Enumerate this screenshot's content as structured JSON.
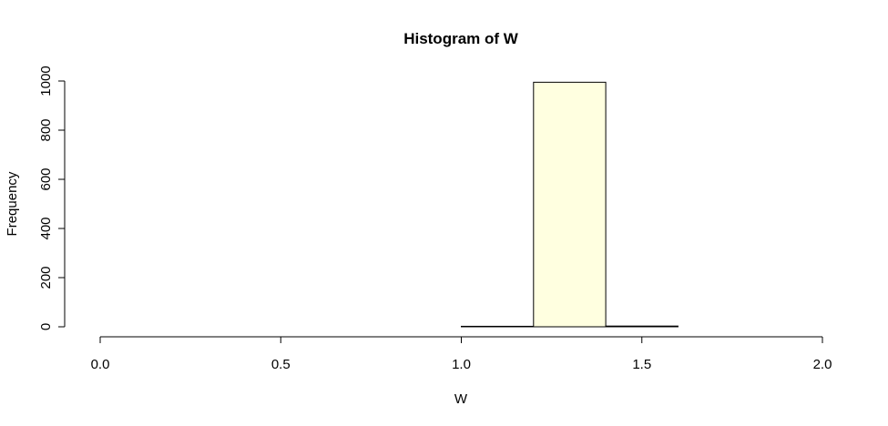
{
  "chart_data": {
    "type": "bar",
    "title": "Histogram of W",
    "xlabel": "W",
    "ylabel": "Frequency",
    "bins": [
      {
        "x0": 0.0,
        "x1": 0.2,
        "count": 0
      },
      {
        "x0": 0.2,
        "x1": 0.4,
        "count": 0
      },
      {
        "x0": 0.4,
        "x1": 0.6,
        "count": 0
      },
      {
        "x0": 0.6,
        "x1": 0.8,
        "count": 0
      },
      {
        "x0": 0.8,
        "x1": 1.0,
        "count": 0
      },
      {
        "x0": 1.0,
        "x1": 1.2,
        "count": 2
      },
      {
        "x0": 1.2,
        "x1": 1.4,
        "count": 995
      },
      {
        "x0": 1.4,
        "x1": 1.6,
        "count": 3
      },
      {
        "x0": 1.6,
        "x1": 1.8,
        "count": 0
      },
      {
        "x0": 1.8,
        "x1": 2.0,
        "count": 0
      }
    ],
    "xlim": [
      0.0,
      2.0
    ],
    "ylim": [
      0,
      1000
    ],
    "xticks": [
      "0.0",
      "0.5",
      "1.0",
      "1.5",
      "2.0"
    ],
    "yticks": [
      "0",
      "200",
      "400",
      "600",
      "800",
      "1000"
    ],
    "bar_fill": "#ffffe0",
    "bar_stroke": "#000000",
    "grid": false,
    "legend": "none"
  }
}
